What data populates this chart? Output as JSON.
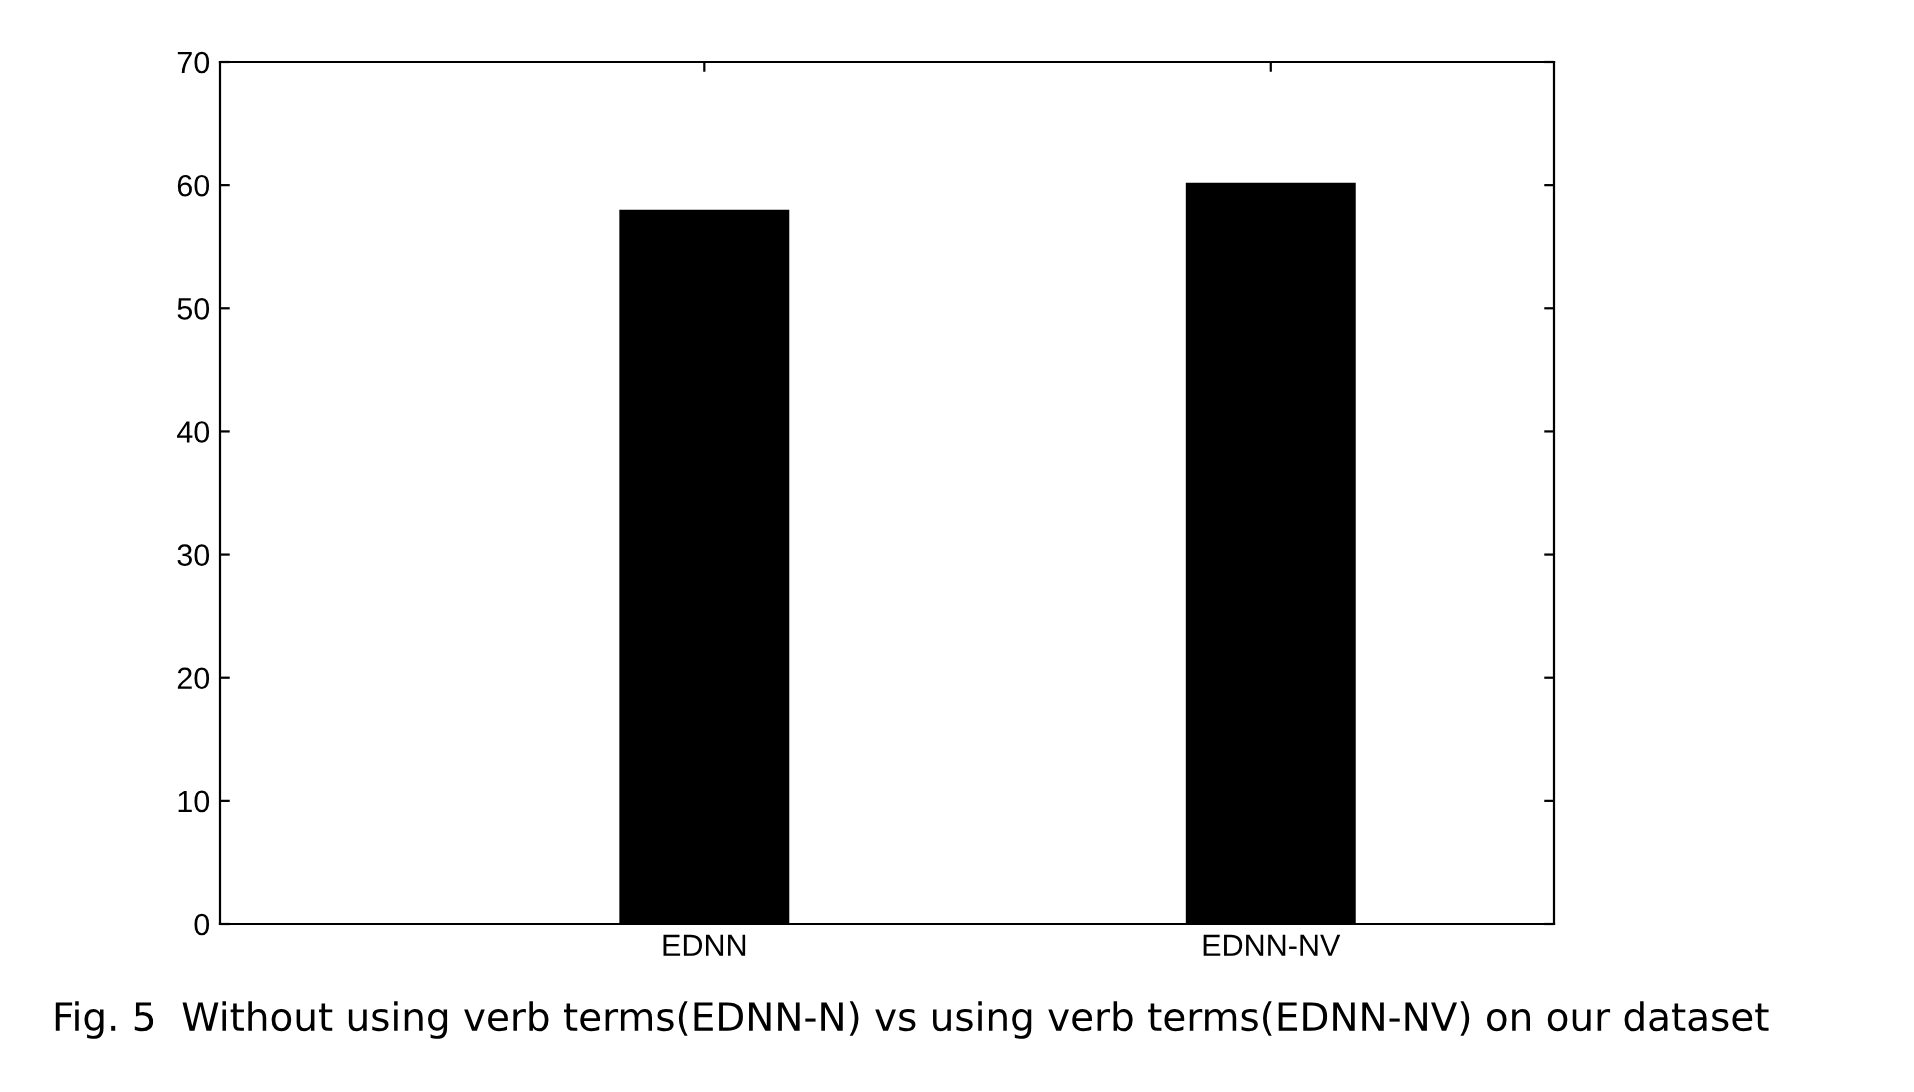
{
  "chart_data": {
    "type": "bar",
    "categories": [
      "EDNN",
      "EDNN-NV"
    ],
    "values": [
      58,
      60.2
    ],
    "color": "#000000",
    "ylim": [
      0,
      70
    ],
    "yticks": [
      0,
      10,
      20,
      30,
      40,
      50,
      60,
      70
    ],
    "grid": false,
    "annotations": [
      "Fig. 5  Without using verb terms(EDNN-N) vs using verb terms(EDNN-NV) on our dataset"
    ]
  }
}
